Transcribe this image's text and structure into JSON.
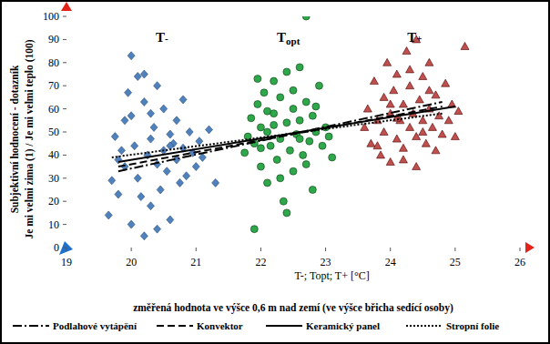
{
  "chart_data": {
    "type": "scatter",
    "y_label": [
      "Subjektivní hodnocení - dotazník",
      "Je mi velmi zima (1) / Je mi velmi teplo (100)"
    ],
    "x_label": [
      "T-; Topt; T+ [°C]",
      "změřená hodnota ve výšce 0,6 m nad zemí (ve výšce břicha sedící osoby)"
    ],
    "annotations": [
      "T-",
      "Topt",
      "T+"
    ],
    "xlim": [
      19,
      26
    ],
    "xticks": [
      19,
      20,
      21,
      22,
      23,
      24,
      25,
      26
    ],
    "ylim": [
      0,
      100
    ],
    "yticks": [
      0,
      10,
      20,
      30,
      40,
      50,
      60,
      70,
      80,
      90,
      100
    ],
    "grid": false,
    "legend": "bottom",
    "series": [
      {
        "type": "scatter",
        "marker": "diamond",
        "color": "#4f81bd",
        "x": [
          19.65,
          19.7,
          19.75,
          19.8,
          19.85,
          19.9,
          19.95,
          20.0,
          20.0,
          20.05,
          20.1,
          20.1,
          20.15,
          20.2,
          20.2,
          20.25,
          20.3,
          20.3,
          20.35,
          20.4,
          20.4,
          20.45,
          20.5,
          20.5,
          20.55,
          20.6,
          20.6,
          20.65,
          20.7,
          20.7,
          20.75,
          20.8,
          20.8,
          20.85,
          20.9,
          20.95,
          21.0,
          21.05,
          21.1,
          21.2,
          21.3,
          19.8,
          20.0,
          20.2,
          20.4,
          20.6,
          19.9,
          20.3
        ],
        "values": [
          14,
          29,
          48,
          38,
          42,
          55,
          67,
          83,
          10,
          44,
          30,
          74,
          22,
          63,
          5,
          40,
          47,
          18,
          52,
          36,
          70,
          25,
          42,
          60,
          33,
          49,
          12,
          45,
          38,
          55,
          28,
          43,
          64,
          31,
          50,
          41,
          35,
          46,
          39,
          51,
          28,
          23,
          57,
          75,
          8,
          44,
          35,
          58
        ]
      },
      {
        "type": "scatter",
        "marker": "circle",
        "color": "#2ea84a",
        "x": [
          21.75,
          21.8,
          21.85,
          21.9,
          21.9,
          21.95,
          22.0,
          22.0,
          22.05,
          22.1,
          22.1,
          22.15,
          22.2,
          22.2,
          22.25,
          22.3,
          22.3,
          22.35,
          22.4,
          22.4,
          22.45,
          22.5,
          22.5,
          22.55,
          22.6,
          22.6,
          22.65,
          22.7,
          22.7,
          22.75,
          22.8,
          22.8,
          22.85,
          22.9,
          22.95,
          23.0,
          23.05,
          23.1,
          22.1,
          22.3,
          22.5,
          22.7,
          22.2,
          22.4,
          22.6,
          21.95,
          22.85,
          22.0
        ],
        "values": [
          41,
          48,
          56,
          8,
          45,
          62,
          35,
          52,
          67,
          28,
          50,
          44,
          72,
          58,
          38,
          65,
          47,
          20,
          54,
          76,
          42,
          60,
          33,
          49,
          78,
          55,
          40,
          100,
          63,
          46,
          25,
          57,
          50,
          70,
          44,
          52,
          48,
          39,
          59,
          30,
          68,
          36,
          53,
          15,
          47,
          73,
          61,
          43
        ]
      },
      {
        "type": "scatter",
        "marker": "triangle",
        "color": "#c0504d",
        "x": [
          23.6,
          23.65,
          23.7,
          23.75,
          23.8,
          23.85,
          23.9,
          23.9,
          23.95,
          24.0,
          24.0,
          24.05,
          24.1,
          24.1,
          24.15,
          24.2,
          24.2,
          24.25,
          24.3,
          24.3,
          24.35,
          24.4,
          24.4,
          24.45,
          24.5,
          24.5,
          24.55,
          24.6,
          24.6,
          24.65,
          24.7,
          24.75,
          24.8,
          24.85,
          24.9,
          24.95,
          25.0,
          25.05,
          25.15,
          24.2,
          24.4,
          24.0,
          24.6,
          23.8,
          24.3,
          24.5,
          24.1,
          24.7
        ],
        "values": [
          52,
          60,
          45,
          72,
          55,
          40,
          65,
          50,
          80,
          58,
          37,
          68,
          47,
          75,
          55,
          62,
          43,
          85,
          52,
          70,
          58,
          48,
          90,
          64,
          55,
          74,
          45,
          60,
          80,
          52,
          66,
          57,
          49,
          71,
          55,
          62,
          48,
          59,
          87,
          38,
          35,
          62,
          68,
          44,
          77,
          50,
          56,
          42
        ]
      },
      {
        "type": "line",
        "name": "Podlahové vytápění",
        "line_style": "dashdot",
        "color": "#000000",
        "x": [
          19.8,
          24.8
        ],
        "values": [
          33,
          63
        ]
      },
      {
        "type": "line",
        "name": "Konvektor",
        "line_style": "dashed",
        "color": "#000000",
        "x": [
          19.8,
          24.8
        ],
        "values": [
          35,
          61
        ]
      },
      {
        "type": "line",
        "name": "Keramický panel",
        "line_style": "solid",
        "color": "#000000",
        "x": [
          19.8,
          25.0
        ],
        "values": [
          37,
          61
        ]
      },
      {
        "type": "line",
        "name": "Stropní folie",
        "line_style": "dotted",
        "color": "#000000",
        "x": [
          19.7,
          24.8
        ],
        "values": [
          39,
          58
        ]
      }
    ]
  }
}
